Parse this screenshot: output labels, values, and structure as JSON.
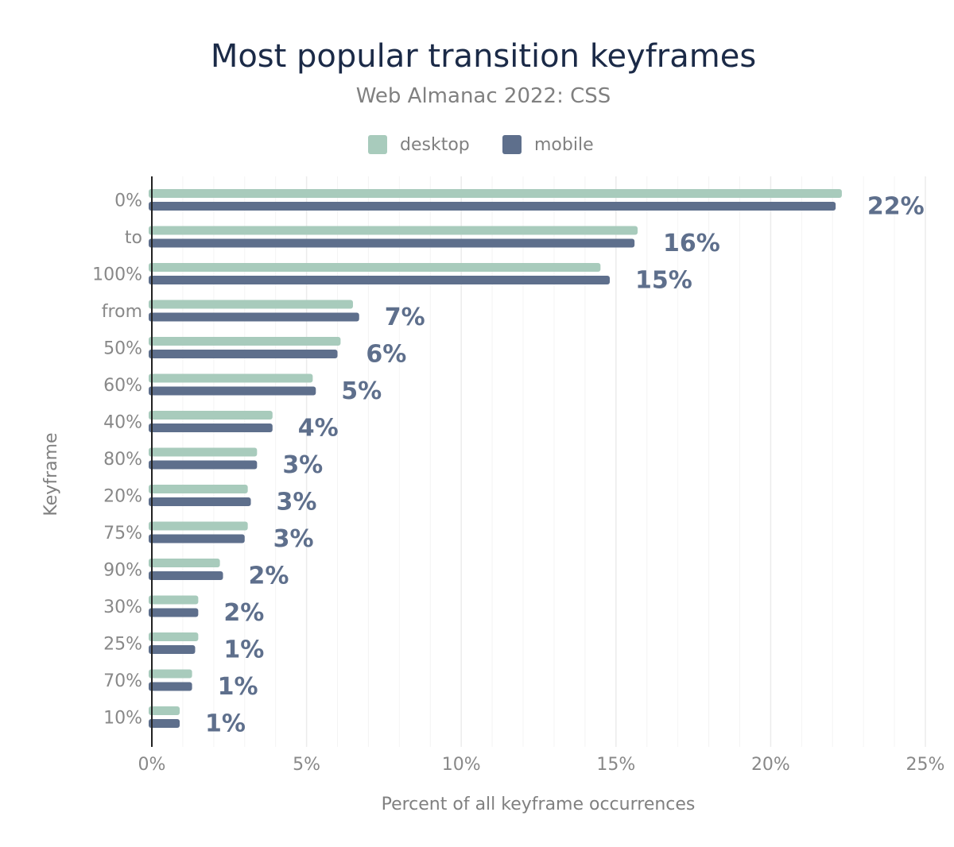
{
  "chart_data": {
    "type": "bar",
    "orientation": "horizontal",
    "title": "Most popular transition keyframes",
    "subtitle": "Web Almanac 2022: CSS",
    "xlabel": "Percent of all keyframe occurrences",
    "ylabel": "Keyframe",
    "xlim": [
      0,
      25
    ],
    "x_ticks": [
      "0%",
      "5%",
      "10%",
      "15%",
      "20%",
      "25%"
    ],
    "grid": true,
    "legend_position": "top",
    "categories": [
      "0%",
      "to",
      "100%",
      "from",
      "50%",
      "60%",
      "40%",
      "80%",
      "20%",
      "75%",
      "90%",
      "30%",
      "25%",
      "70%",
      "10%"
    ],
    "series": [
      {
        "name": "desktop",
        "color": "#a8cbbc",
        "values": [
          22.3,
          15.7,
          14.5,
          6.5,
          6.1,
          5.2,
          3.9,
          3.4,
          3.1,
          3.1,
          2.2,
          1.5,
          1.5,
          1.3,
          0.9
        ]
      },
      {
        "name": "mobile",
        "color": "#5e6f8c",
        "values": [
          22.1,
          15.6,
          14.8,
          6.7,
          6.0,
          5.3,
          3.9,
          3.4,
          3.2,
          3.0,
          2.3,
          1.5,
          1.4,
          1.3,
          0.9
        ]
      }
    ],
    "data_labels": [
      "22%",
      "16%",
      "15%",
      "7%",
      "6%",
      "5%",
      "4%",
      "3%",
      "3%",
      "3%",
      "2%",
      "2%",
      "1%",
      "1%",
      "1%"
    ]
  }
}
